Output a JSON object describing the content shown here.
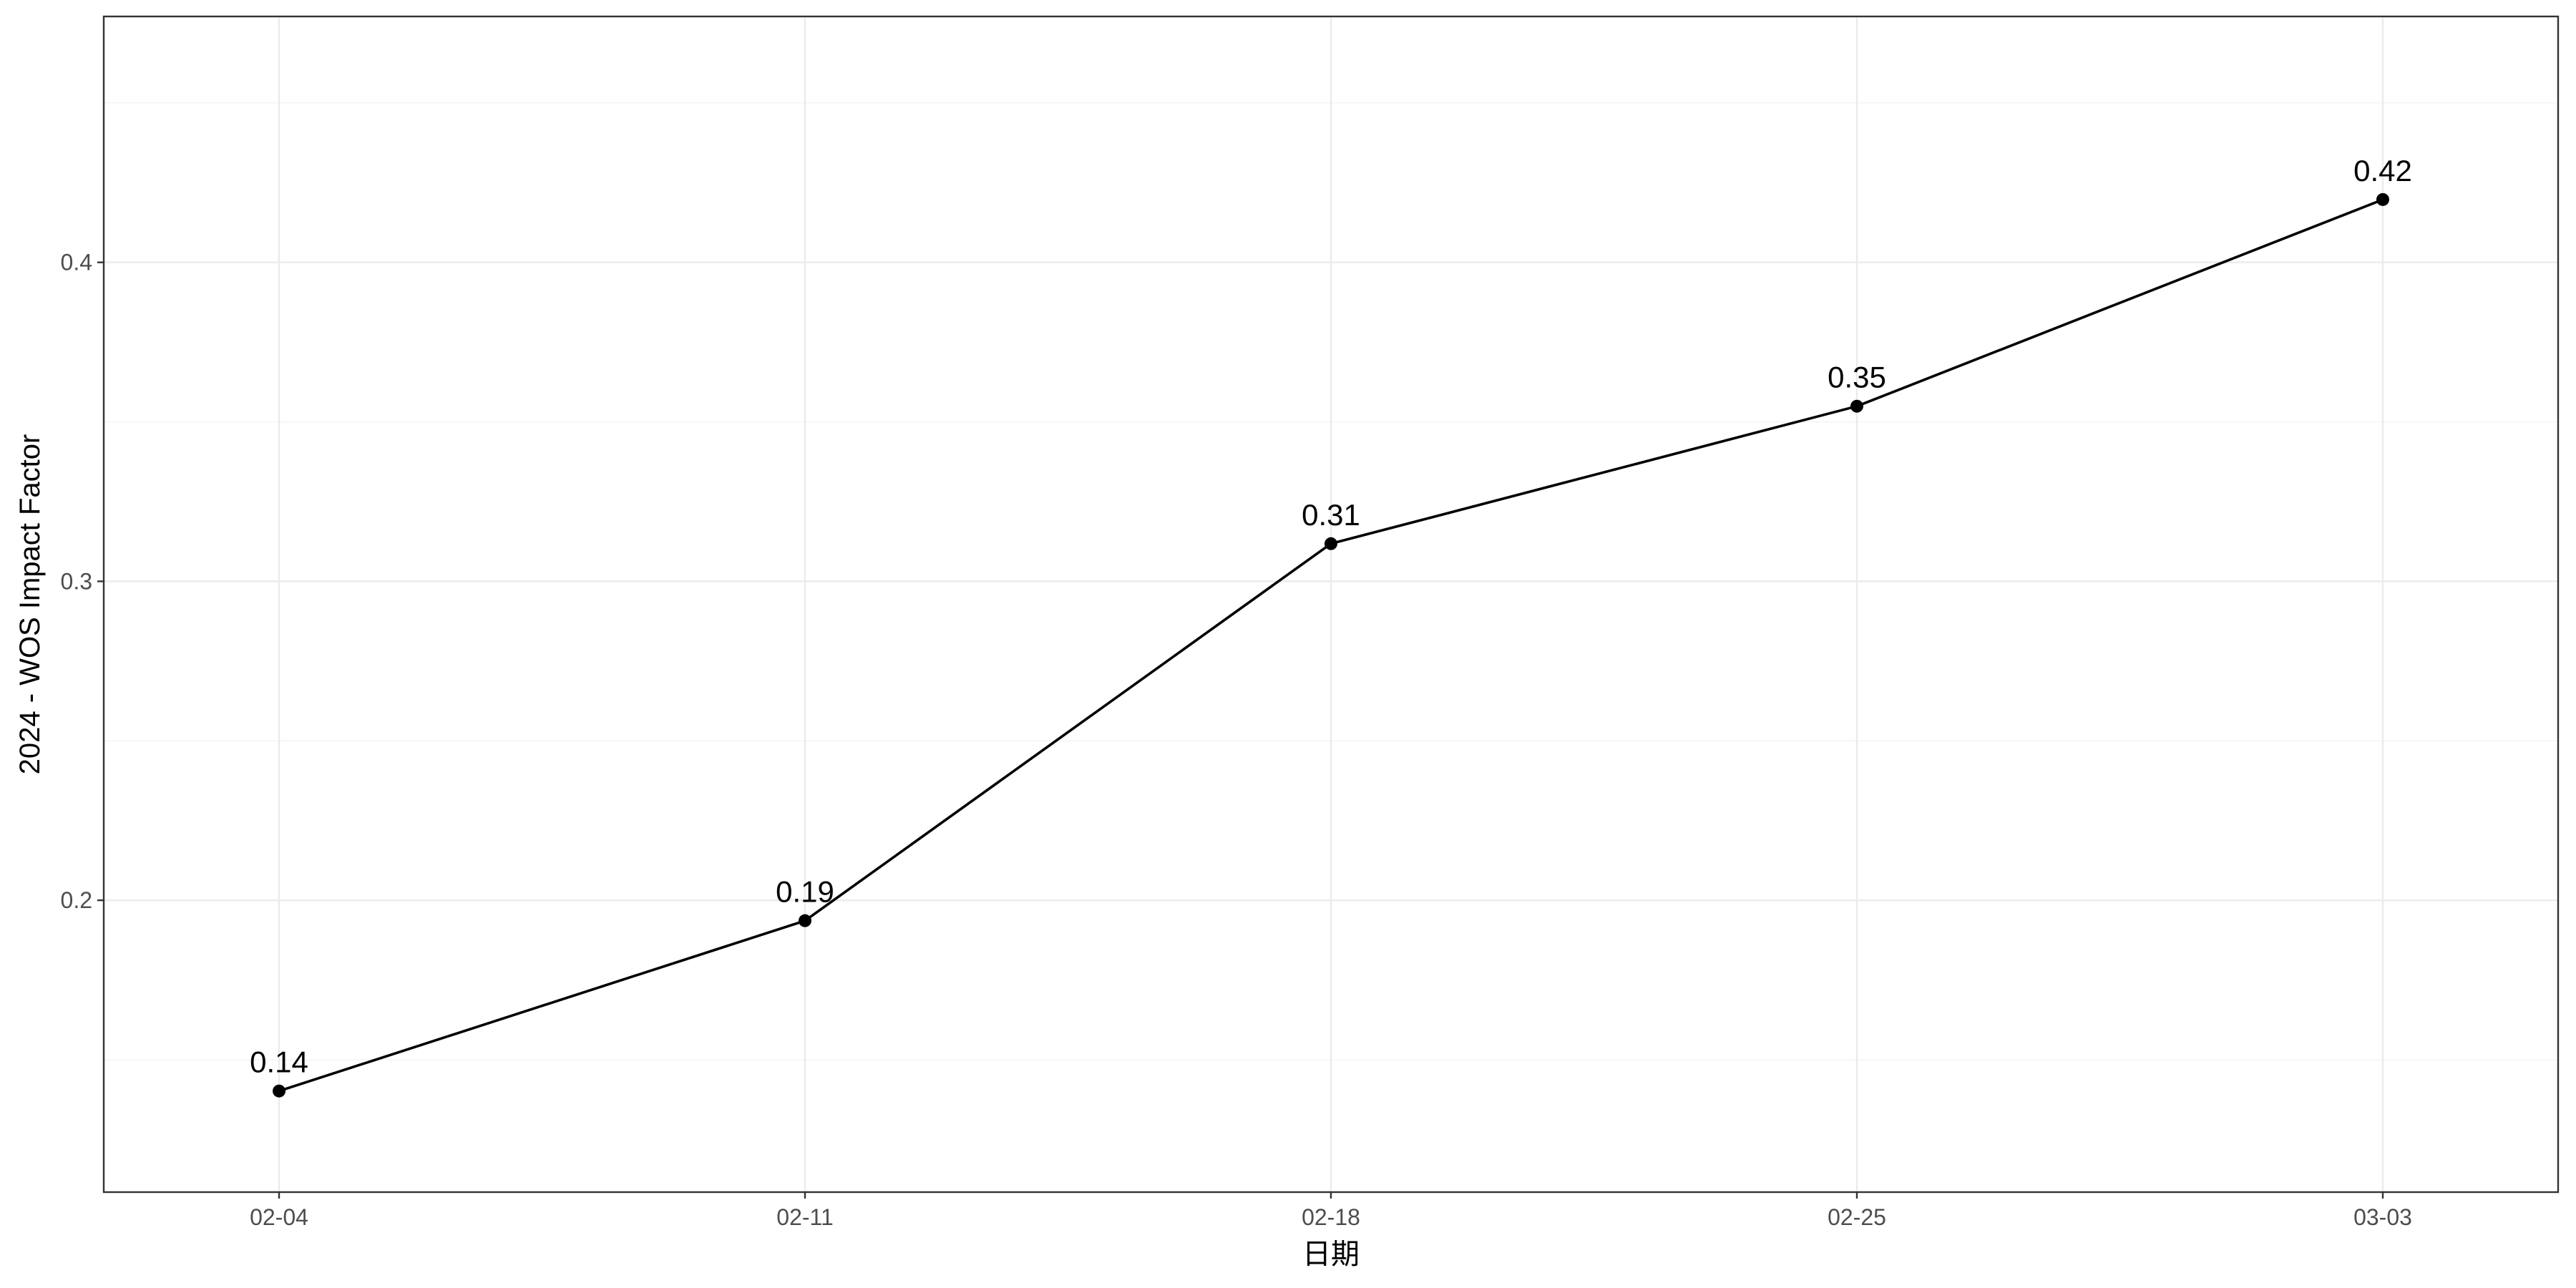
{
  "chart_data": {
    "type": "line",
    "title": "",
    "xlabel": "日期",
    "ylabel": "2024 - WOS Impact Factor",
    "categories": [
      "02-04",
      "02-11",
      "02-18",
      "02-25",
      "03-03"
    ],
    "values": [
      0.1402,
      0.1936,
      0.3118,
      0.3549,
      0.4197
    ],
    "data_labels": [
      "0.14",
      "0.19",
      "0.31",
      "0.35",
      "0.42"
    ],
    "ylim": [
      0.1085,
      0.4771
    ],
    "y_ticks": [
      0.2,
      0.3,
      0.4
    ],
    "y_tick_labels": [
      "0.2",
      "0.3",
      "0.4"
    ],
    "y_minor_ticks": [
      0.15,
      0.25,
      0.35,
      0.45
    ],
    "grid": true,
    "legend": "none",
    "colors": {
      "line": "#000000",
      "point": "#000000",
      "grid": "#ebebeb",
      "panel_border": "#333333"
    }
  }
}
